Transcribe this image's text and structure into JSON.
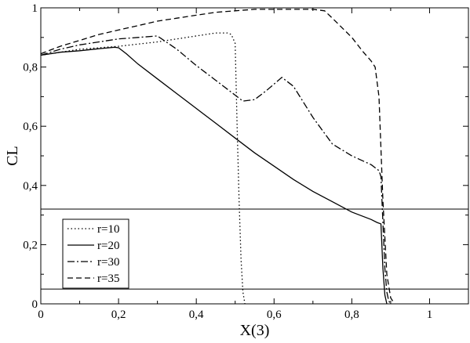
{
  "chart_data": {
    "type": "line",
    "xlabel": "X(3)",
    "ylabel": "CL",
    "xlim": [
      0,
      1.1
    ],
    "ylim": [
      0,
      1
    ],
    "xticks": [
      {
        "value": 0,
        "label": "0"
      },
      {
        "value": 0.2,
        "label": "0,2"
      },
      {
        "value": 0.4,
        "label": "0,4"
      },
      {
        "value": 0.6,
        "label": "0,6"
      },
      {
        "value": 0.8,
        "label": "0,8"
      },
      {
        "value": 1.0,
        "label": "1"
      }
    ],
    "yticks": [
      {
        "value": 0,
        "label": "0"
      },
      {
        "value": 0.2,
        "label": "0,2"
      },
      {
        "value": 0.4,
        "label": "0,4"
      },
      {
        "value": 0.6,
        "label": "0,6"
      },
      {
        "value": 0.8,
        "label": "0,8"
      },
      {
        "value": 1.0,
        "label": "1"
      }
    ],
    "hlines": [
      0.32,
      0.05
    ],
    "grid": false,
    "legend_position": "bottom-left",
    "series": [
      {
        "name": "r=10",
        "dash": "dotted",
        "x": [
          0,
          0.1,
          0.2,
          0.3,
          0.4,
          0.45,
          0.48,
          0.49,
          0.5,
          0.505,
          0.51,
          0.515,
          0.52,
          0.525
        ],
        "y": [
          0.84,
          0.86,
          0.87,
          0.885,
          0.905,
          0.915,
          0.915,
          0.91,
          0.88,
          0.6,
          0.35,
          0.15,
          0.04,
          0
        ]
      },
      {
        "name": "r=20",
        "dash": "solid",
        "x": [
          0,
          0.05,
          0.1,
          0.15,
          0.19,
          0.2,
          0.22,
          0.25,
          0.3,
          0.35,
          0.4,
          0.45,
          0.5,
          0.55,
          0.6,
          0.65,
          0.7,
          0.75,
          0.8,
          0.85,
          0.865,
          0.875,
          0.88,
          0.885,
          0.89
        ],
        "y": [
          0.84,
          0.85,
          0.855,
          0.862,
          0.867,
          0.865,
          0.845,
          0.81,
          0.76,
          0.71,
          0.66,
          0.61,
          0.56,
          0.51,
          0.465,
          0.42,
          0.38,
          0.345,
          0.31,
          0.285,
          0.275,
          0.27,
          0.12,
          0.03,
          0
        ]
      },
      {
        "name": "r=30",
        "dash": "dashdot",
        "x": [
          0,
          0.05,
          0.1,
          0.15,
          0.2,
          0.25,
          0.3,
          0.35,
          0.4,
          0.45,
          0.5,
          0.52,
          0.55,
          0.58,
          0.62,
          0.65,
          0.7,
          0.75,
          0.8,
          0.85,
          0.87,
          0.875,
          0.885,
          0.89,
          0.895,
          0.9
        ],
        "y": [
          0.84,
          0.86,
          0.875,
          0.885,
          0.895,
          0.9,
          0.905,
          0.86,
          0.805,
          0.755,
          0.705,
          0.685,
          0.69,
          0.72,
          0.765,
          0.735,
          0.63,
          0.54,
          0.5,
          0.47,
          0.45,
          0.43,
          0.12,
          0.04,
          0.01,
          0
        ]
      },
      {
        "name": "r=35",
        "dash": "dashed",
        "x": [
          0,
          0.05,
          0.1,
          0.15,
          0.2,
          0.25,
          0.3,
          0.35,
          0.4,
          0.45,
          0.5,
          0.55,
          0.6,
          0.65,
          0.7,
          0.73,
          0.75,
          0.8,
          0.83,
          0.85,
          0.86,
          0.87,
          0.88,
          0.89,
          0.9,
          0.91
        ],
        "y": [
          0.845,
          0.87,
          0.89,
          0.91,
          0.925,
          0.94,
          0.955,
          0.965,
          0.975,
          0.985,
          0.99,
          0.995,
          0.995,
          0.995,
          0.995,
          0.99,
          0.965,
          0.9,
          0.85,
          0.82,
          0.8,
          0.7,
          0.35,
          0.1,
          0.02,
          0
        ]
      }
    ]
  }
}
